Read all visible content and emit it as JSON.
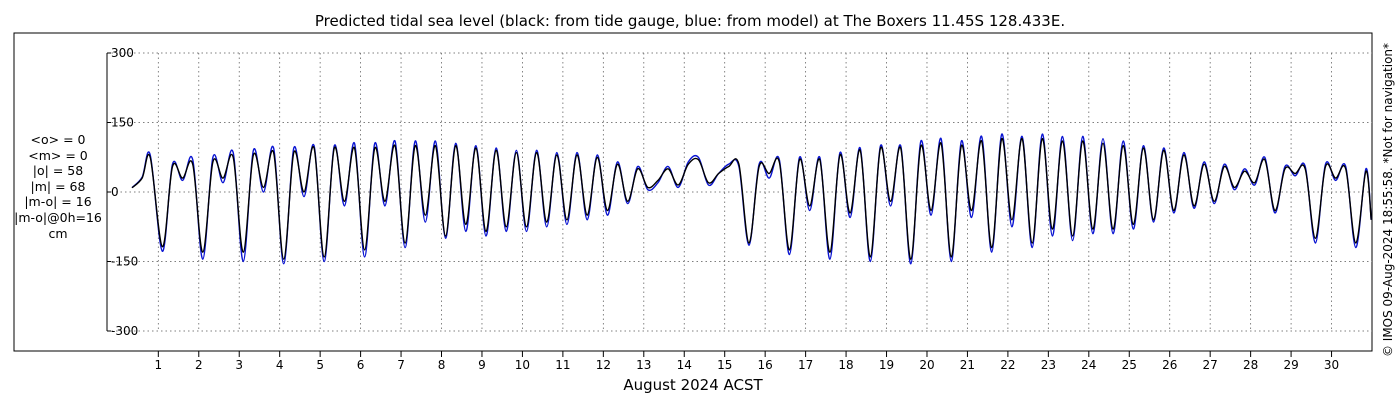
{
  "title": "Predicted tidal sea level (black: from tide gauge, blue: from model) at The Boxers 11.45S 128.433E.",
  "xlabel": "August 2024 ACST",
  "credit": "© IMOS 09-Aug-2024 18:55:58. *Not for navigation*",
  "stats": [
    "<o> = 0",
    "<m> = 0",
    "|o| = 58",
    "|m| = 68",
    "|m-o| = 16",
    "|m-o|@0h=16",
    "cm"
  ],
  "chart_data": {
    "type": "line",
    "title": "Predicted tidal sea level (black: from tide gauge, blue: from model) at The Boxers 11.45S 128.433E.",
    "xlabel": "August 2024 ACST",
    "ylabel": "",
    "xlim": [
      0.3,
      31.0
    ],
    "ylim": [
      -300,
      300
    ],
    "yticks": [
      300,
      150,
      0,
      -150,
      -300
    ],
    "yticklabels": [
      "300",
      "150",
      "0",
      "-150",
      "-300"
    ],
    "xticks": [
      1,
      2,
      3,
      4,
      5,
      6,
      7,
      8,
      9,
      10,
      11,
      12,
      13,
      14,
      15,
      16,
      17,
      18,
      19,
      20,
      21,
      22,
      23,
      24,
      25,
      26,
      27,
      28,
      29,
      30
    ],
    "xticklabels": [
      "1",
      "2",
      "3",
      "4",
      "5",
      "6",
      "7",
      "8",
      "9",
      "10",
      "11",
      "12",
      "13",
      "14",
      "15",
      "16",
      "17",
      "18",
      "19",
      "20",
      "21",
      "22",
      "23",
      "24",
      "25",
      "26",
      "27",
      "28",
      "29",
      "30"
    ],
    "grid": true,
    "series_style": {
      "observed": "#000000",
      "model": "#0a14d2"
    },
    "x_start": 0.35,
    "x_end": 30.98,
    "series": [
      {
        "color": "#000000",
        "x": [
          0.6,
          0.8,
          1.1,
          1.35,
          1.6,
          1.85,
          2.1,
          2.35,
          2.6,
          2.85,
          3.1,
          3.35,
          3.6,
          3.85,
          4.1,
          4.35,
          4.6,
          4.85,
          5.1,
          5.35,
          5.6,
          5.85,
          6.1,
          6.35,
          6.6,
          6.85,
          7.1,
          7.35,
          7.6,
          7.85,
          8.1,
          8.35,
          8.6,
          8.85,
          9.1,
          9.35,
          9.6,
          9.85,
          10.1,
          10.35,
          10.6,
          10.85,
          11.1,
          11.35,
          11.6,
          11.85,
          12.1,
          12.35,
          12.6,
          12.85,
          13.1,
          13.35,
          13.6,
          13.85,
          14.1,
          14.35,
          14.6,
          14.85,
          15.1,
          15.35,
          15.6,
          15.85,
          16.1,
          16.35,
          16.6,
          16.85,
          17.1,
          17.35,
          17.6,
          17.85,
          18.1,
          18.35,
          18.6,
          18.85,
          19.1,
          19.35,
          19.6,
          19.85,
          20.1,
          20.35,
          20.6,
          20.85,
          21.1,
          21.35,
          21.6,
          21.85,
          22.1,
          22.35,
          22.6,
          22.85,
          23.1,
          23.35,
          23.6,
          23.85,
          24.1,
          24.35,
          24.6,
          24.85,
          25.1,
          25.35,
          25.6,
          25.85,
          26.1,
          26.35,
          26.6,
          26.85,
          27.1,
          27.35,
          27.6,
          27.85,
          28.1,
          28.35,
          28.6,
          28.85,
          29.1,
          29.35,
          29.6,
          29.85,
          30.1,
          30.35,
          30.6,
          30.85
        ],
        "y": [
          30,
          75,
          -118,
          55,
          30,
          60,
          -130,
          65,
          30,
          75,
          -130,
          80,
          10,
          85,
          -145,
          85,
          0,
          95,
          -140,
          95,
          -20,
          95,
          -125,
          95,
          -20,
          100,
          -110,
          100,
          -50,
          100,
          -95,
          100,
          -70,
          95,
          -85,
          90,
          -75,
          85,
          -75,
          85,
          -65,
          80,
          -60,
          80,
          -50,
          75,
          -40,
          60,
          -20,
          50,
          10,
          25,
          50,
          15,
          60,
          70,
          20,
          40,
          55,
          60,
          -110,
          55,
          40,
          65,
          -125,
          70,
          -30,
          70,
          -130,
          80,
          -45,
          90,
          -140,
          95,
          -20,
          95,
          -145,
          100,
          -40,
          105,
          -140,
          100,
          -40,
          110,
          -120,
          115,
          -60,
          115,
          -110,
          115,
          -80,
          110,
          -95,
          110,
          -80,
          105,
          -80,
          100,
          -70,
          95,
          -60,
          90,
          -40,
          80,
          -30,
          60,
          -20,
          55,
          10,
          45,
          20,
          70,
          -40,
          50,
          40,
          50,
          -100,
          55,
          30,
          50,
          -110,
          45
        ]
      },
      {
        "color": "#0a14d2",
        "x": [
          0.6,
          0.8,
          1.1,
          1.35,
          1.6,
          1.85,
          2.1,
          2.35,
          2.6,
          2.85,
          3.1,
          3.35,
          3.6,
          3.85,
          4.1,
          4.35,
          4.6,
          4.85,
          5.1,
          5.35,
          5.6,
          5.85,
          6.1,
          6.35,
          6.6,
          6.85,
          7.1,
          7.35,
          7.6,
          7.85,
          8.1,
          8.35,
          8.6,
          8.85,
          9.1,
          9.35,
          9.6,
          9.85,
          10.1,
          10.35,
          10.6,
          10.85,
          11.1,
          11.35,
          11.6,
          11.85,
          12.1,
          12.35,
          12.6,
          12.85,
          13.1,
          13.35,
          13.6,
          13.85,
          14.1,
          14.35,
          14.6,
          14.85,
          15.1,
          15.35,
          15.6,
          15.85,
          16.1,
          16.35,
          16.6,
          16.85,
          17.1,
          17.35,
          17.6,
          17.85,
          18.1,
          18.35,
          18.6,
          18.85,
          19.1,
          19.35,
          19.6,
          19.85,
          20.1,
          20.35,
          20.6,
          20.85,
          21.1,
          21.35,
          21.6,
          21.85,
          22.1,
          22.35,
          22.6,
          22.85,
          23.1,
          23.35,
          23.6,
          23.85,
          24.1,
          24.35,
          24.6,
          24.85,
          25.1,
          25.35,
          25.6,
          25.85,
          26.1,
          26.35,
          26.6,
          26.85,
          27.1,
          27.35,
          27.6,
          27.85,
          28.1,
          28.35,
          28.6,
          28.85,
          29.1,
          29.35,
          29.6,
          29.85,
          30.1,
          30.35,
          30.6,
          30.85
        ],
        "y": [
          32,
          80,
          -128,
          60,
          25,
          70,
          -145,
          75,
          20,
          85,
          -150,
          90,
          0,
          95,
          -155,
          95,
          -10,
          100,
          -150,
          100,
          -30,
          105,
          -140,
          105,
          -30,
          110,
          -120,
          110,
          -65,
          110,
          -100,
          105,
          -85,
          100,
          -95,
          95,
          -85,
          90,
          -85,
          90,
          -75,
          85,
          -70,
          85,
          -60,
          80,
          -50,
          65,
          -25,
          55,
          5,
          20,
          55,
          10,
          65,
          75,
          15,
          40,
          60,
          55,
          -115,
          60,
          30,
          70,
          -135,
          75,
          -40,
          75,
          -145,
          85,
          -55,
          95,
          -150,
          100,
          -30,
          100,
          -155,
          110,
          -50,
          115,
          -150,
          110,
          -55,
          120,
          -130,
          125,
          -75,
          120,
          -120,
          125,
          -95,
          120,
          -105,
          120,
          -90,
          115,
          -90,
          110,
          -80,
          100,
          -65,
          95,
          -45,
          85,
          -35,
          65,
          -25,
          60,
          5,
          50,
          15,
          75,
          -45,
          55,
          35,
          55,
          -110,
          60,
          25,
          55,
          -120,
          50
        ]
      }
    ]
  }
}
